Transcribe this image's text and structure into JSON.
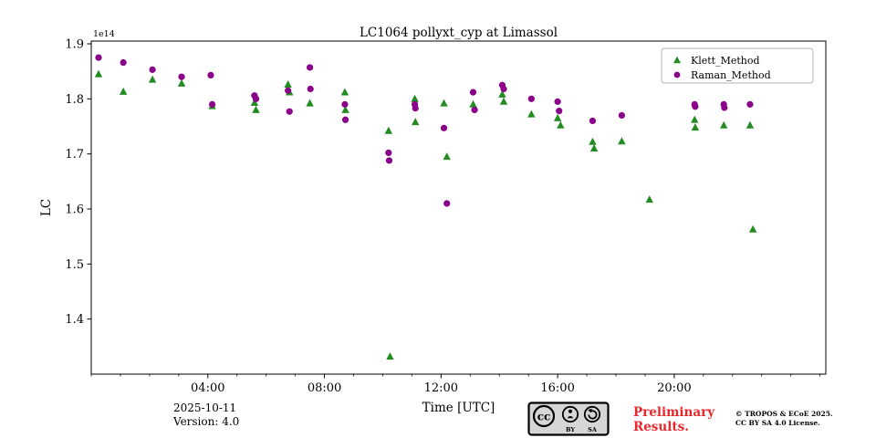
{
  "chart_data": {
    "type": "scatter",
    "title": "LC1064 pollyxt_cyp at Limassol",
    "xlabel": "Time [UTC]",
    "ylabel": "LC",
    "offset_text": "1e14",
    "xlim": [
      0,
      25.2
    ],
    "ylim": [
      1.3,
      1.905
    ],
    "grid": false,
    "xticks": [
      {
        "value": 4,
        "label": "04:00"
      },
      {
        "value": 8,
        "label": "08:00"
      },
      {
        "value": 12,
        "label": "12:00"
      },
      {
        "value": 16,
        "label": "16:00"
      },
      {
        "value": 20,
        "label": "20:00"
      }
    ],
    "yticks": [
      {
        "value": 1.4,
        "label": "1.4"
      },
      {
        "value": 1.5,
        "label": "1.5"
      },
      {
        "value": 1.6,
        "label": "1.6"
      },
      {
        "value": 1.7,
        "label": "1.7"
      },
      {
        "value": 1.8,
        "label": "1.8"
      },
      {
        "value": 1.9,
        "label": "1.9"
      }
    ],
    "legend": {
      "position": "upper-right",
      "items": [
        {
          "label": "Klett_Method",
          "marker": "triangle",
          "color": "#228B22"
        },
        {
          "label": "Raman_Method",
          "marker": "circle",
          "color": "#8B008B"
        }
      ]
    },
    "series": [
      {
        "name": "Klett_Method",
        "marker": "triangle",
        "color": "#228B22",
        "points": [
          [
            0.25,
            1.845
          ],
          [
            1.1,
            1.813
          ],
          [
            2.1,
            1.835
          ],
          [
            3.1,
            1.828
          ],
          [
            4.15,
            1.787
          ],
          [
            5.6,
            1.793
          ],
          [
            5.65,
            1.78
          ],
          [
            6.75,
            1.826
          ],
          [
            6.8,
            1.812
          ],
          [
            7.5,
            1.792
          ],
          [
            8.7,
            1.812
          ],
          [
            8.72,
            1.78
          ],
          [
            10.2,
            1.742
          ],
          [
            10.25,
            1.332
          ],
          [
            11.1,
            1.8
          ],
          [
            11.12,
            1.758
          ],
          [
            12.1,
            1.792
          ],
          [
            12.2,
            1.695
          ],
          [
            13.1,
            1.79
          ],
          [
            14.1,
            1.808
          ],
          [
            14.15,
            1.795
          ],
          [
            15.1,
            1.772
          ],
          [
            16.0,
            1.765
          ],
          [
            16.1,
            1.752
          ],
          [
            17.2,
            1.722
          ],
          [
            17.25,
            1.71
          ],
          [
            18.2,
            1.723
          ],
          [
            19.15,
            1.617
          ],
          [
            20.7,
            1.762
          ],
          [
            20.72,
            1.748
          ],
          [
            21.7,
            1.752
          ],
          [
            22.6,
            1.752
          ],
          [
            22.7,
            1.563
          ]
        ]
      },
      {
        "name": "Raman_Method",
        "marker": "circle",
        "color": "#8B008B",
        "points": [
          [
            0.25,
            1.875
          ],
          [
            1.1,
            1.866
          ],
          [
            2.1,
            1.853
          ],
          [
            3.1,
            1.84
          ],
          [
            4.1,
            1.843
          ],
          [
            4.15,
            1.79
          ],
          [
            5.6,
            1.806
          ],
          [
            5.65,
            1.8
          ],
          [
            6.75,
            1.815
          ],
          [
            6.8,
            1.777
          ],
          [
            7.5,
            1.857
          ],
          [
            7.52,
            1.818
          ],
          [
            8.7,
            1.79
          ],
          [
            8.72,
            1.762
          ],
          [
            10.2,
            1.702
          ],
          [
            10.22,
            1.688
          ],
          [
            11.1,
            1.79
          ],
          [
            11.12,
            1.783
          ],
          [
            12.1,
            1.747
          ],
          [
            12.2,
            1.61
          ],
          [
            13.1,
            1.812
          ],
          [
            13.15,
            1.78
          ],
          [
            14.1,
            1.825
          ],
          [
            14.15,
            1.818
          ],
          [
            15.1,
            1.8
          ],
          [
            16.0,
            1.795
          ],
          [
            16.05,
            1.778
          ],
          [
            17.2,
            1.76
          ],
          [
            18.2,
            1.77
          ],
          [
            20.7,
            1.79
          ],
          [
            20.72,
            1.786
          ],
          [
            21.7,
            1.79
          ],
          [
            21.72,
            1.784
          ],
          [
            22.6,
            1.79
          ]
        ]
      }
    ]
  },
  "footer": {
    "date": "2025-10-11",
    "version": "Version: 4.0",
    "preliminary_line1": "Preliminary",
    "preliminary_line2": "Results.",
    "preliminary_color": "#e8262d",
    "copyright_line1": "© TROPOS & ECoE 2025.",
    "copyright_line2": "CC BY SA 4.0 License.",
    "license_badge": "CC BY SA"
  }
}
